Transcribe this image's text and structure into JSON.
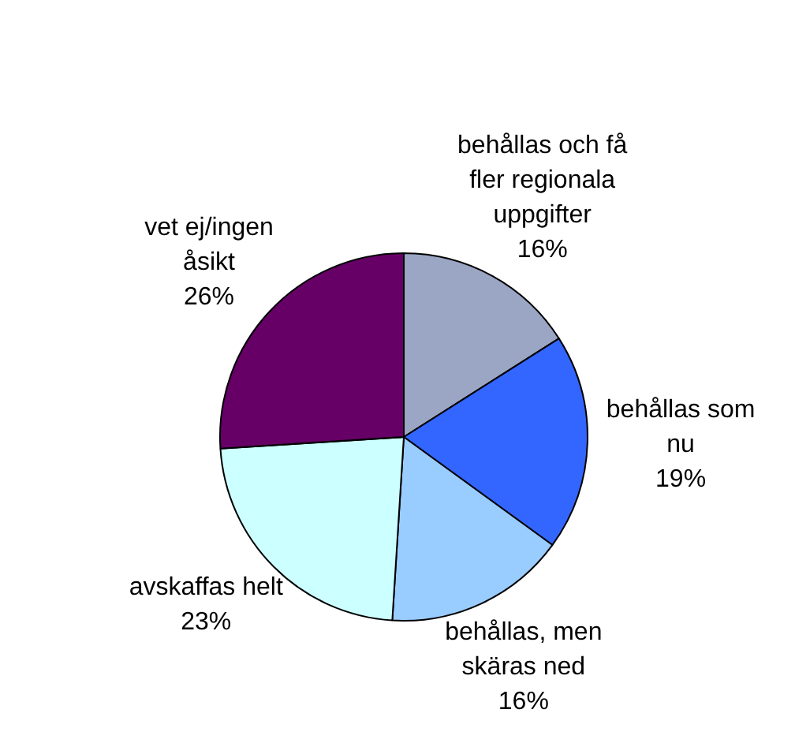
{
  "chart_data": {
    "type": "pie",
    "categories": [
      "behållas och få fler regionala uppgifter",
      "behållas som nu",
      "behållas, men skäras ned",
      "avskaffas helt",
      "vet ej/ingen åsikt"
    ],
    "values": [
      16,
      19,
      16,
      23,
      26
    ],
    "value_labels": [
      "16%",
      "19%",
      "16%",
      "23%",
      "26%"
    ],
    "colors": [
      "#9aa6c4",
      "#3366ff",
      "#99ccff",
      "#ccffff",
      "#660066"
    ],
    "legend": false
  }
}
